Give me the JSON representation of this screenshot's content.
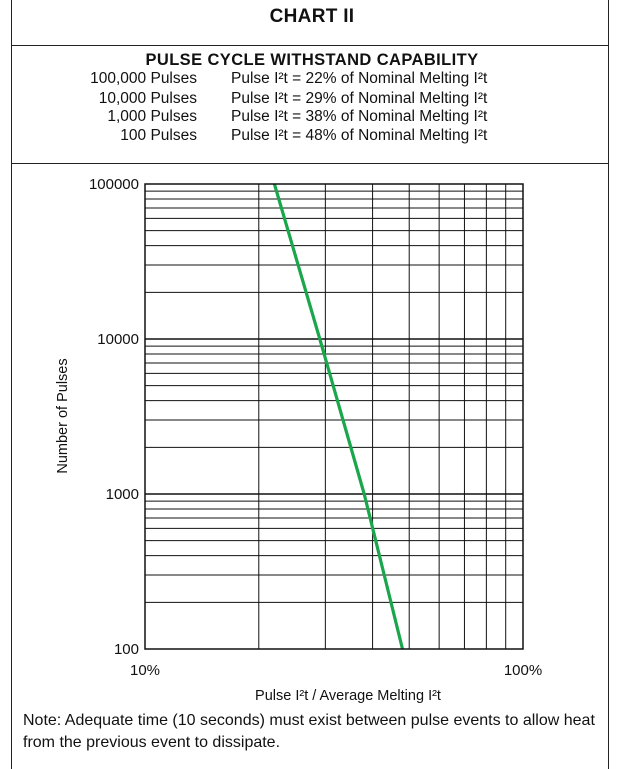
{
  "header": {
    "title": "CHART II",
    "subtitle": "PULSE CYCLE WITHSTAND CAPABILITY"
  },
  "pulse_table": [
    {
      "count": "100,000 Pulses",
      "desc": "Pulse I²t = 22% of Nominal Melting I²t"
    },
    {
      "count": "10,000 Pulses",
      "desc": "Pulse I²t = 29% of Nominal Melting I²t"
    },
    {
      "count": "1,000 Pulses",
      "desc": "Pulse I²t = 38% of Nominal Melting I²t"
    },
    {
      "count": "100 Pulses",
      "desc": "Pulse I²t = 48% of Nominal Melting I²t"
    }
  ],
  "colors": {
    "line": "#1aa64a",
    "grid": "#111111"
  },
  "chart_data": {
    "type": "line",
    "xscale": "log",
    "yscale": "log",
    "xlim": [
      10,
      100
    ],
    "ylim": [
      100,
      100000
    ],
    "x_tick_labels": [
      "10%",
      "100%"
    ],
    "y_tick_labels": [
      "100000",
      "10000",
      "1000",
      "100"
    ],
    "x_tick_values": [
      10,
      100
    ],
    "y_tick_values": [
      100000,
      10000,
      1000,
      100
    ],
    "xlabel": "Pulse I²t / Average Melting I²t",
    "ylabel": "Number of Pulses",
    "grid": true,
    "series": [
      {
        "x": [
          22,
          29,
          38,
          48
        ],
        "y": [
          100000,
          10000,
          1000,
          100
        ]
      }
    ]
  },
  "note": "Note: Adequate time (10 seconds) must exist between pulse events to allow heat from the previous event to dissipate."
}
